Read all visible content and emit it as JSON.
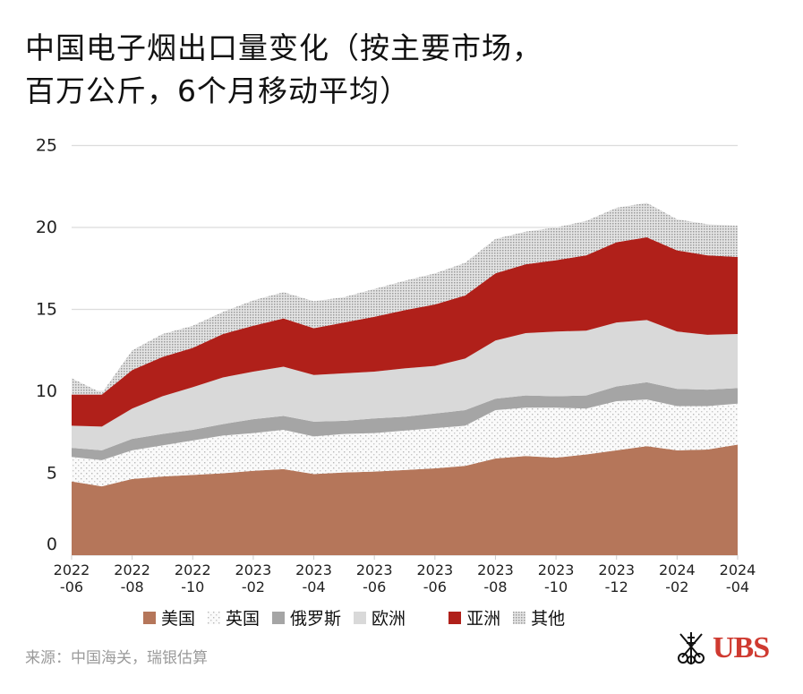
{
  "title": "中国电子烟出口量变化（按主要市场，\n百万公斤，6个月移动平均）",
  "source": "来源：中国海关，瑞银估算",
  "logo_text": "UBS",
  "chart_data": {
    "type": "area",
    "stacked": true,
    "title": "中国电子烟出口量变化（按主要市场，百万公斤，6个月移动平均）",
    "xlabel": "",
    "ylabel": "",
    "ylim": [
      0,
      25
    ],
    "yticks": [
      "0",
      "5",
      "10",
      "15",
      "20",
      "25"
    ],
    "grid": true,
    "legend_position": "bottom",
    "xtick_labels": [
      [
        "2022",
        "-06"
      ],
      [
        "2022",
        "-08"
      ],
      [
        "2022",
        "-10"
      ],
      [
        "2023",
        "-02"
      ],
      [
        "2023",
        "-04"
      ],
      [
        "2023",
        "-06"
      ],
      [
        "2023",
        "-06"
      ],
      [
        "2023",
        "-08"
      ],
      [
        "2023",
        "-10"
      ],
      [
        "2023",
        "-12"
      ],
      [
        "2024",
        "-02"
      ],
      [
        "2024",
        "-04"
      ]
    ],
    "n_points": 23,
    "series": [
      {
        "name": "美国",
        "color": "#b5765a",
        "fill": "solid",
        "values": [
          4.5,
          4.2,
          4.65,
          4.8,
          4.9,
          5.0,
          5.15,
          5.25,
          4.95,
          5.05,
          5.1,
          5.2,
          5.3,
          5.45,
          5.9,
          6.05,
          5.95,
          6.15,
          6.4,
          6.65,
          6.4,
          6.45,
          6.75
        ]
      },
      {
        "name": "英国",
        "color": "#bdbdbd",
        "fill": "sparse-dots",
        "values": [
          1.5,
          1.6,
          1.75,
          1.9,
          2.1,
          2.3,
          2.3,
          2.4,
          2.3,
          2.35,
          2.35,
          2.4,
          2.45,
          2.45,
          2.95,
          2.95,
          3.05,
          2.8,
          3.0,
          2.85,
          2.7,
          2.65,
          2.5
        ]
      },
      {
        "name": "俄罗斯",
        "color": "#a5a5a5",
        "fill": "solid",
        "values": [
          0.55,
          0.6,
          0.7,
          0.7,
          0.65,
          0.7,
          0.85,
          0.85,
          0.9,
          0.8,
          0.9,
          0.85,
          0.9,
          0.95,
          0.7,
          0.75,
          0.7,
          0.8,
          0.9,
          1.05,
          1.05,
          1.0,
          0.95
        ]
      },
      {
        "name": "欧洲",
        "color": "#d9d9d9",
        "fill": "solid",
        "values": [
          1.35,
          1.45,
          1.85,
          2.3,
          2.6,
          2.85,
          2.9,
          3.0,
          2.85,
          2.9,
          2.85,
          2.95,
          2.9,
          3.15,
          3.55,
          3.8,
          3.95,
          3.95,
          3.9,
          3.8,
          3.5,
          3.35,
          3.3
        ]
      },
      {
        "name": "亚洲",
        "color": "#b0201a",
        "fill": "solid",
        "values": [
          1.9,
          1.95,
          2.35,
          2.4,
          2.4,
          2.65,
          2.8,
          2.95,
          2.85,
          3.1,
          3.35,
          3.55,
          3.75,
          3.85,
          4.1,
          4.2,
          4.35,
          4.6,
          4.9,
          5.05,
          4.95,
          4.85,
          4.7
        ]
      },
      {
        "name": "其他",
        "color": "#9e9e9e",
        "fill": "dense-dots",
        "values": [
          1.0,
          0.1,
          1.2,
          1.4,
          1.35,
          1.35,
          1.55,
          1.6,
          1.65,
          1.55,
          1.7,
          1.8,
          1.9,
          2.0,
          2.1,
          2.0,
          2.0,
          2.1,
          2.1,
          2.1,
          1.9,
          1.9,
          1.9
        ]
      }
    ]
  }
}
